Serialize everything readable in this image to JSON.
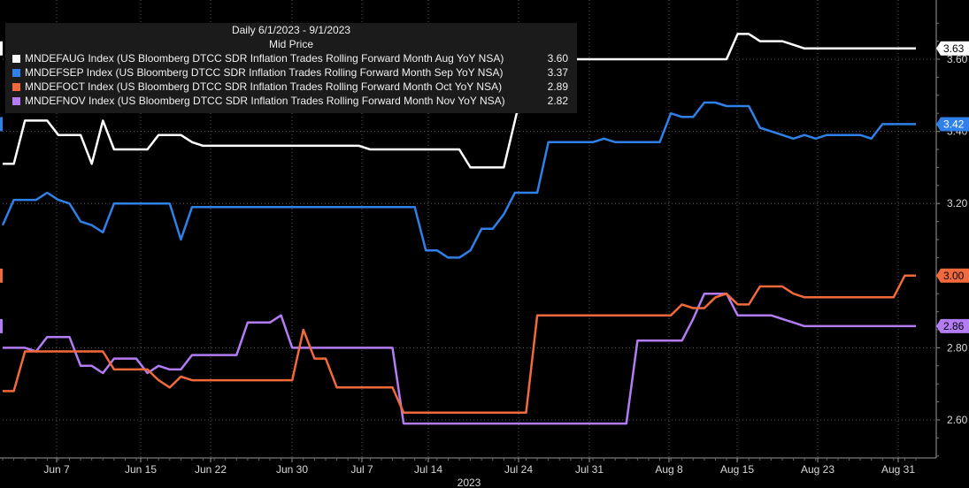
{
  "chart_data": {
    "type": "line",
    "title": "Daily 6/1/2023 - 9/1/2023",
    "subtitle": "Mid Price",
    "xlabel": "2023",
    "x_ticks": [
      "Jun 7",
      "Jun 15",
      "Jun 22",
      "Jun 30",
      "Jul 7",
      "Jul 14",
      "Jul 24",
      "Jul 31",
      "Aug 8",
      "Aug 15",
      "Aug 23",
      "Aug 31"
    ],
    "y_ticks": [
      "2.60",
      "2.80",
      "3.20",
      "3.40",
      "3.60"
    ],
    "ylim": [
      2.47,
      3.75
    ],
    "legend_position": "top-left",
    "series": [
      {
        "id": "aug",
        "name": "MNDEFAUG Index (US Bloomberg DTCC SDR Inflation Trades Rolling Forward Month Aug YoY NSA)",
        "legend_value": "3.60",
        "last": 3.63,
        "last_label": "3.63",
        "color": "#ffffff",
        "badge_text_color": "#000000",
        "values": [
          3.31,
          3.31,
          3.43,
          3.43,
          3.43,
          3.39,
          3.39,
          3.39,
          3.31,
          3.43,
          3.35,
          3.35,
          3.35,
          3.35,
          3.39,
          3.39,
          3.39,
          3.37,
          3.36,
          3.36,
          3.36,
          3.36,
          3.36,
          3.36,
          3.36,
          3.36,
          3.36,
          3.36,
          3.36,
          3.36,
          3.36,
          3.36,
          3.36,
          3.35,
          3.35,
          3.35,
          3.35,
          3.35,
          3.35,
          3.35,
          3.35,
          3.35,
          3.3,
          3.3,
          3.3,
          3.3,
          3.43,
          3.56,
          3.6,
          3.6,
          3.6,
          3.6,
          3.6,
          3.6,
          3.6,
          3.6,
          3.6,
          3.6,
          3.6,
          3.6,
          3.6,
          3.6,
          3.6,
          3.6,
          3.6,
          3.6,
          3.67,
          3.67,
          3.65,
          3.65,
          3.65,
          3.64,
          3.63,
          3.63,
          3.63,
          3.63,
          3.63,
          3.63,
          3.63,
          3.63,
          3.63,
          3.63,
          3.63
        ]
      },
      {
        "id": "sep",
        "name": "MNDEFSEP Index (US Bloomberg DTCC SDR Inflation Trades Rolling Forward Month Sep YoY NSA)",
        "legend_value": "3.37",
        "last": 3.42,
        "last_label": "3.42",
        "color": "#2f80e8",
        "badge_text_color": "#ffffff",
        "values": [
          3.14,
          3.21,
          3.21,
          3.21,
          3.23,
          3.21,
          3.2,
          3.15,
          3.14,
          3.12,
          3.2,
          3.2,
          3.2,
          3.2,
          3.2,
          3.2,
          3.1,
          3.19,
          3.19,
          3.19,
          3.19,
          3.19,
          3.19,
          3.19,
          3.19,
          3.19,
          3.19,
          3.19,
          3.19,
          3.19,
          3.19,
          3.19,
          3.19,
          3.19,
          3.19,
          3.19,
          3.19,
          3.19,
          3.07,
          3.07,
          3.05,
          3.05,
          3.07,
          3.13,
          3.13,
          3.17,
          3.23,
          3.23,
          3.23,
          3.37,
          3.37,
          3.37,
          3.37,
          3.37,
          3.38,
          3.37,
          3.37,
          3.37,
          3.37,
          3.37,
          3.45,
          3.44,
          3.44,
          3.48,
          3.48,
          3.47,
          3.47,
          3.47,
          3.41,
          3.4,
          3.39,
          3.38,
          3.39,
          3.38,
          3.39,
          3.39,
          3.39,
          3.39,
          3.38,
          3.42,
          3.42,
          3.42,
          3.42
        ]
      },
      {
        "id": "oct",
        "name": "MNDEFOCT Index (US Bloomberg DTCC SDR Inflation Trades Rolling Forward Month Oct YoY NSA)",
        "legend_value": "2.89",
        "last": 3.0,
        "last_label": "3.00",
        "color": "#f26a3b",
        "badge_text_color": "#000000",
        "values": [
          2.68,
          2.68,
          2.79,
          2.79,
          2.79,
          2.79,
          2.79,
          2.79,
          2.79,
          2.79,
          2.74,
          2.74,
          2.74,
          2.74,
          2.71,
          2.69,
          2.72,
          2.71,
          2.71,
          2.71,
          2.71,
          2.71,
          2.71,
          2.71,
          2.71,
          2.71,
          2.71,
          2.85,
          2.77,
          2.77,
          2.69,
          2.69,
          2.69,
          2.69,
          2.69,
          2.69,
          2.62,
          2.62,
          2.62,
          2.62,
          2.62,
          2.62,
          2.62,
          2.62,
          2.62,
          2.62,
          2.62,
          2.62,
          2.89,
          2.89,
          2.89,
          2.89,
          2.89,
          2.89,
          2.89,
          2.89,
          2.89,
          2.89,
          2.89,
          2.89,
          2.89,
          2.92,
          2.91,
          2.91,
          2.94,
          2.95,
          2.92,
          2.92,
          2.97,
          2.97,
          2.97,
          2.95,
          2.94,
          2.94,
          2.94,
          2.94,
          2.94,
          2.94,
          2.94,
          2.94,
          2.94,
          3.0,
          3.0
        ]
      },
      {
        "id": "nov",
        "name": "MNDEFNOV Index (US Bloomberg DTCC SDR Inflation Trades Rolling Forward Month Nov YoY NSA)",
        "legend_value": "2.82",
        "last": 2.86,
        "last_label": "2.86",
        "color": "#b47cf4",
        "badge_text_color": "#000000",
        "values": [
          2.8,
          2.8,
          2.8,
          2.79,
          2.83,
          2.83,
          2.83,
          2.75,
          2.75,
          2.73,
          2.77,
          2.77,
          2.77,
          2.73,
          2.75,
          2.74,
          2.74,
          2.78,
          2.78,
          2.78,
          2.78,
          2.78,
          2.87,
          2.87,
          2.87,
          2.89,
          2.8,
          2.8,
          2.8,
          2.8,
          2.8,
          2.8,
          2.8,
          2.8,
          2.8,
          2.8,
          2.59,
          2.59,
          2.59,
          2.59,
          2.59,
          2.59,
          2.59,
          2.59,
          2.59,
          2.59,
          2.59,
          2.59,
          2.59,
          2.59,
          2.59,
          2.59,
          2.59,
          2.59,
          2.59,
          2.59,
          2.59,
          2.82,
          2.82,
          2.82,
          2.82,
          2.82,
          2.88,
          2.95,
          2.95,
          2.95,
          2.89,
          2.89,
          2.89,
          2.89,
          2.88,
          2.87,
          2.86,
          2.86,
          2.86,
          2.86,
          2.86,
          2.86,
          2.86,
          2.86,
          2.86,
          2.86,
          2.86
        ]
      }
    ]
  }
}
